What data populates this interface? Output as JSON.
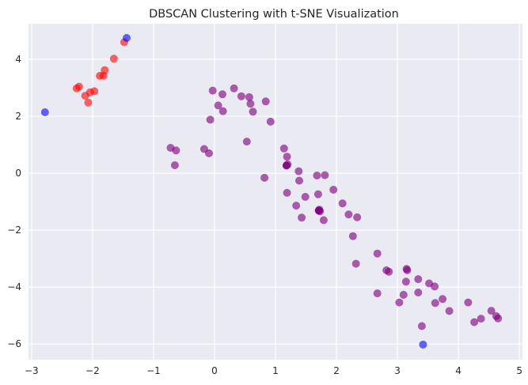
{
  "colors": {
    "background": "#eaeaf2",
    "grid": "#ffffff",
    "cluster": "#800080",
    "red_cluster": "#ff0000",
    "noise": "#0000ff"
  },
  "chart_data": {
    "type": "scatter",
    "title": "DBSCAN Clustering with t-SNE Visualization",
    "xlabel": "",
    "ylabel": "",
    "xlim": [
      -3.05,
      5.05
    ],
    "ylim": [
      -6.55,
      5.25
    ],
    "xticks": [
      -3,
      -2,
      -1,
      0,
      1,
      2,
      3,
      4,
      5
    ],
    "yticks": [
      -6,
      -4,
      -2,
      0,
      2,
      4
    ],
    "grid": true,
    "series": [
      {
        "color": "purple",
        "x": [
          -0.03,
          0.13,
          0.32,
          0.44,
          0.57,
          0.84,
          0.06,
          0.59,
          0.14,
          0.63,
          -0.07,
          0.92,
          -0.72,
          -0.63,
          -0.17,
          -0.09,
          0.53,
          -0.65,
          0.82,
          1.14,
          1.19,
          1.2,
          1.38,
          1.39,
          1.68,
          1.81,
          1.95,
          1.19,
          1.7,
          2.1,
          1.49,
          1.34,
          1.72,
          1.73,
          2.2,
          2.34,
          1.43,
          1.79,
          2.27,
          2.67,
          2.32,
          2.82,
          2.86,
          3.15,
          3.16,
          3.14,
          3.34,
          3.52,
          3.61,
          3.1,
          2.67,
          3.34,
          3.74,
          3.03,
          3.62,
          4.16,
          3.85,
          4.37,
          4.54,
          4.62,
          4.26,
          4.65,
          3.4
        ],
        "y": [
          2.9,
          2.77,
          2.98,
          2.7,
          2.67,
          2.52,
          2.38,
          2.44,
          2.18,
          2.16,
          1.88,
          1.81,
          0.89,
          0.8,
          0.85,
          0.7,
          1.11,
          0.28,
          -0.16,
          0.87,
          0.58,
          0.31,
          0.07,
          -0.26,
          -0.08,
          -0.07,
          -0.58,
          -0.69,
          -0.74,
          -1.06,
          -0.83,
          -1.14,
          -1.28,
          -1.34,
          -1.45,
          -1.55,
          -1.56,
          -1.65,
          -2.21,
          -2.82,
          -3.18,
          -3.41,
          -3.46,
          -3.36,
          -3.41,
          -3.81,
          -3.72,
          -3.87,
          -3.98,
          -4.27,
          -4.22,
          -4.19,
          -4.42,
          -4.54,
          -4.56,
          -4.54,
          -4.84,
          -5.11,
          -4.83,
          -5.02,
          -5.23,
          -5.1,
          -5.37
        ]
      },
      {
        "color": "darkpurple",
        "x": [
          1.18,
          1.71
        ],
        "y": [
          0.27,
          -1.31
        ]
      },
      {
        "color": "red",
        "x": [
          -1.48,
          -1.65,
          -1.8,
          -1.82,
          -1.88,
          -1.97,
          -2.04,
          -2.07,
          -2.12,
          -2.22,
          -2.26
        ],
        "y": [
          4.6,
          4.02,
          3.62,
          3.42,
          3.42,
          2.88,
          2.84,
          2.48,
          2.72,
          3.04,
          2.98
        ]
      },
      {
        "color": "blue",
        "x": [
          -1.44,
          -2.78,
          3.42
        ],
        "y": [
          4.75,
          2.14,
          -6.02
        ]
      }
    ]
  }
}
